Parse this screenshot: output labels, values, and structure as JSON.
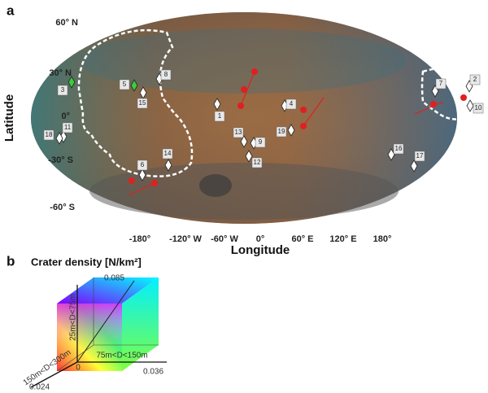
{
  "panel_a": {
    "label": "a",
    "y_axis_label": "Latitude",
    "x_axis_label": "Longitude",
    "lat_ticks": [
      "60° N",
      "30° N",
      "0°",
      "-30° S",
      "-60° S"
    ],
    "lon_ticks": [
      "-180°",
      "-120° W",
      "-60° W",
      "0°",
      "60° E",
      "120° E",
      "180°"
    ],
    "markers": [
      "1",
      "2",
      "3",
      "4",
      "5",
      "6",
      "7",
      "8",
      "9",
      "10",
      "11",
      "12",
      "13",
      "14",
      "15",
      "16",
      "17",
      "18",
      "19"
    ]
  },
  "panel_b": {
    "label": "b",
    "title": "Crater density [N/km²]",
    "axis_max_1": "0.085",
    "axis_label_1": "25m<D<75m",
    "axis_label_2": "75m<D<150m",
    "axis_max_2": "0.036",
    "axis_label_3": "150m<D<300m",
    "axis_max_3": "0.024",
    "origin": "0"
  }
}
